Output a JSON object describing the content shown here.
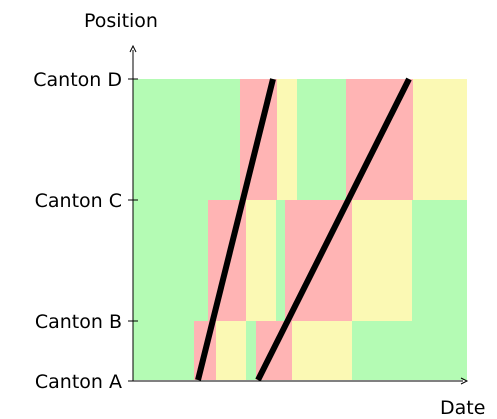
{
  "axes": {
    "y_title": "Position",
    "x_title": "Date"
  },
  "y_ticks": [
    "Canton A",
    "Canton B",
    "Canton C",
    "Canton D"
  ],
  "colors": {
    "green": "#b4fbb4",
    "red": "#ffb4b4",
    "yellow": "#fbf9b4",
    "line": "#000000"
  }
}
